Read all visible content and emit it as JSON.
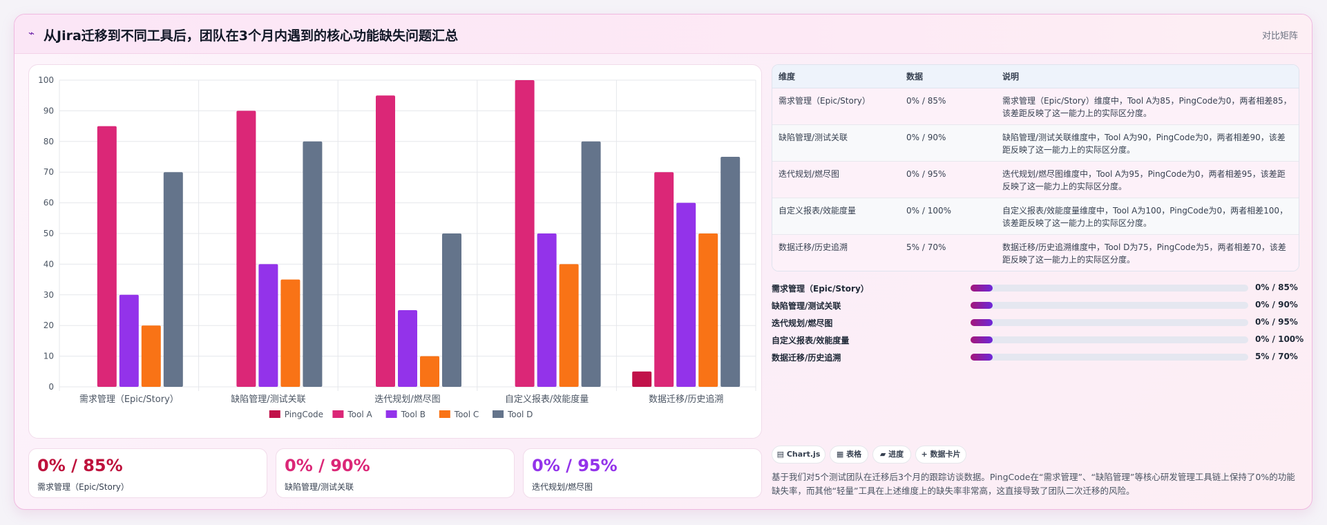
{
  "header": {
    "icon": "chart-icon",
    "title": "从Jira迁移到不同工具后，团队在3个月内遇到的核心功能缺失问题汇总",
    "tag": "对比矩阵"
  },
  "chart_data": {
    "type": "bar",
    "categories": [
      "需求管理（Epic/Story）",
      "缺陷管理/测试关联",
      "迭代规划/燃尽图",
      "自定义报表/效能度量",
      "数据迁移/历史追溯"
    ],
    "series": [
      {
        "name": "PingCode",
        "color": "#c1124a",
        "values": [
          0,
          0,
          0,
          0,
          5
        ]
      },
      {
        "name": "Tool A",
        "color": "#db2777",
        "values": [
          85,
          90,
          95,
          100,
          70
        ]
      },
      {
        "name": "Tool B",
        "color": "#9333ea",
        "values": [
          30,
          40,
          25,
          50,
          60
        ]
      },
      {
        "name": "Tool C",
        "color": "#f97316",
        "values": [
          20,
          35,
          10,
          40,
          50
        ]
      },
      {
        "name": "Tool D",
        "color": "#64748b",
        "values": [
          70,
          80,
          50,
          80,
          75
        ]
      }
    ],
    "ylim": [
      0,
      100
    ],
    "yticks": [
      0,
      10,
      20,
      30,
      40,
      50,
      60,
      70,
      80,
      90,
      100
    ],
    "grid": true,
    "legend": "bottom"
  },
  "table": {
    "headers": [
      "维度",
      "数据",
      "说明"
    ],
    "rows": [
      {
        "dim": "需求管理（Epic/Story）",
        "data": "0% / 85%",
        "desc": "需求管理（Epic/Story）维度中，Tool A为85，PingCode为0，两者相差85，该差距反映了这一能力上的实际区分度。"
      },
      {
        "dim": "缺陷管理/测试关联",
        "data": "0% / 90%",
        "desc": "缺陷管理/测试关联维度中，Tool A为90，PingCode为0，两者相差90，该差距反映了这一能力上的实际区分度。"
      },
      {
        "dim": "迭代规划/燃尽图",
        "data": "0% / 95%",
        "desc": "迭代规划/燃尽图维度中，Tool A为95，PingCode为0，两者相差95，该差距反映了这一能力上的实际区分度。"
      },
      {
        "dim": "自定义报表/效能度量",
        "data": "0% / 100%",
        "desc": "自定义报表/效能度量维度中，Tool A为100，PingCode为0，两者相差100，该差距反映了这一能力上的实际区分度。"
      },
      {
        "dim": "数据迁移/历史追溯",
        "data": "5% / 70%",
        "desc": "数据迁移/历史追溯维度中，Tool D为75，PingCode为5，两者相差70，该差距反映了这一能力上的实际区分度。"
      }
    ]
  },
  "progress": [
    {
      "label": "需求管理（Epic/Story）",
      "value": "0% / 85%",
      "fill": 0.08
    },
    {
      "label": "缺陷管理/测试关联",
      "value": "0% / 90%",
      "fill": 0.08
    },
    {
      "label": "迭代规划/燃尽图",
      "value": "0% / 95%",
      "fill": 0.08
    },
    {
      "label": "自定义报表/效能度量",
      "value": "0% / 100%",
      "fill": 0.08
    },
    {
      "label": "数据迁移/历史追溯",
      "value": "5% / 70%",
      "fill": 0.08
    }
  ],
  "kpis": [
    {
      "value": "0% / 85%",
      "label": "需求管理（Epic/Story）",
      "color": "#be123c"
    },
    {
      "value": "0% / 90%",
      "label": "缺陷管理/测试关联",
      "color": "#db2777"
    },
    {
      "value": "0% / 95%",
      "label": "迭代规划/燃尽图",
      "color": "#9333ea"
    }
  ],
  "chips": [
    {
      "icon": "bar-chart-icon",
      "text": "Chart.js"
    },
    {
      "icon": "table-icon",
      "text": "表格"
    },
    {
      "icon": "progress-icon",
      "text": "进度"
    },
    {
      "icon": "plus-icon",
      "text": "数据卡片"
    }
  ],
  "note": "基于我们对5个测试团队在迁移后3个月的跟踪访谈数据。PingCode在“需求管理”、“缺陷管理”等核心研发管理工具链上保持了0%的功能缺失率，而其他“轻量”工具在上述维度上的缺失率非常高，这直接导致了团队二次迁移的风险。"
}
